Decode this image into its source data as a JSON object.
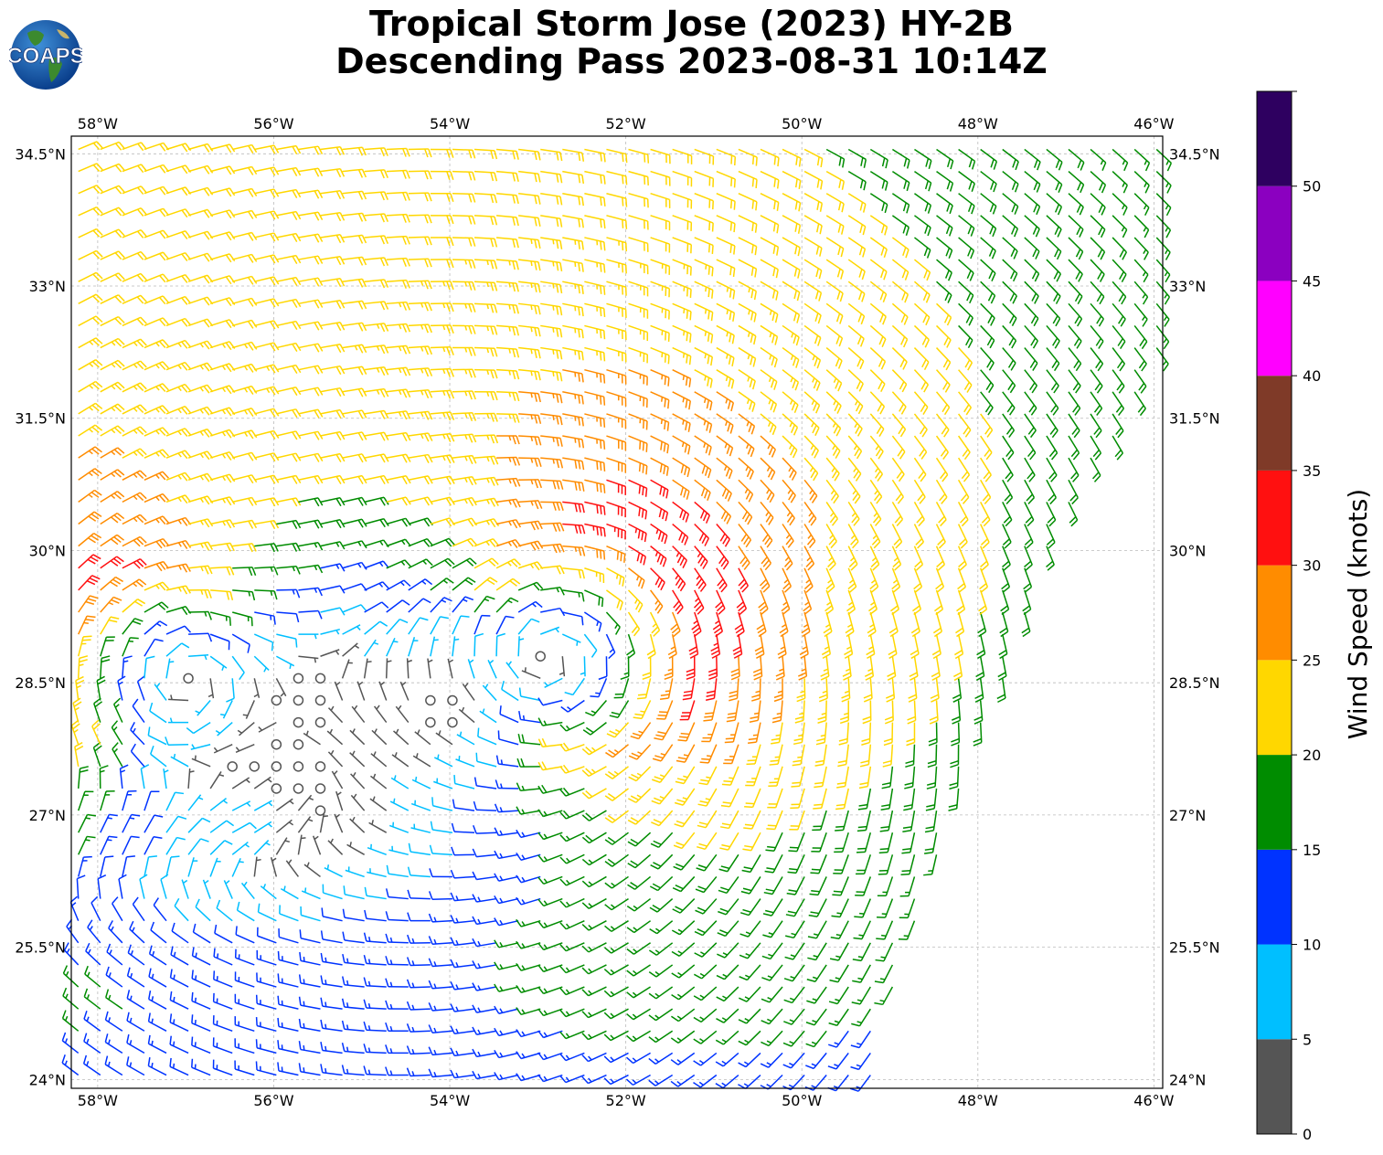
{
  "title": {
    "line1": "Tropical Storm Jose (2023) HY-2B",
    "line2": "Descending Pass 2023-08-31 10:14Z"
  },
  "logo": {
    "text": "COAPS",
    "icon": "globe-logo-icon"
  },
  "map": {
    "lon_min": -58.3,
    "lon_max": -45.9,
    "lat_min": 23.9,
    "lat_max": 34.7,
    "lon_ticks": [
      -58,
      -56,
      -54,
      -52,
      -50,
      -48,
      -46
    ],
    "lon_tick_labels": [
      "58°W",
      "56°W",
      "54°W",
      "52°W",
      "50°W",
      "48°W",
      "46°W"
    ],
    "lat_ticks": [
      24,
      25.5,
      27,
      28.5,
      30,
      31.5,
      33,
      34.5
    ],
    "lat_tick_labels": [
      "24°N",
      "25.5°N",
      "27°N",
      "28.5°N",
      "30°N",
      "31.5°N",
      "33°N",
      "34.5°N"
    ],
    "grid": true,
    "swath_east_edge": [
      [
        -45.9,
        34.7
      ],
      [
        -45.9,
        32.2
      ],
      [
        -47.0,
        30.4
      ],
      [
        -48.0,
        27.8
      ],
      [
        -49.0,
        24.8
      ],
      [
        -49.2,
        23.9
      ]
    ],
    "circulation_centers": [
      {
        "lon": -53.98,
        "lat": 28.2,
        "marker": "calm"
      },
      {
        "lon": -57.6,
        "lat": 28.7,
        "marker": "cyclonic"
      },
      {
        "lon": -52.4,
        "lat": 29.0,
        "marker": "cyclonic"
      }
    ]
  },
  "colorbar": {
    "label": "Wind Speed (knots)",
    "ticks": [
      "0",
      "5",
      "10",
      "15",
      "20",
      "25",
      "30",
      "35",
      "40",
      "45",
      "50"
    ],
    "bins": [
      {
        "min": 0,
        "max": 5,
        "color": "#555555"
      },
      {
        "min": 5,
        "max": 10,
        "color": "#00bfff"
      },
      {
        "min": 10,
        "max": 15,
        "color": "#0033ff"
      },
      {
        "min": 15,
        "max": 20,
        "color": "#008c00"
      },
      {
        "min": 20,
        "max": 25,
        "color": "#ffd700"
      },
      {
        "min": 25,
        "max": 30,
        "color": "#ff8c00"
      },
      {
        "min": 30,
        "max": 35,
        "color": "#ff1010"
      },
      {
        "min": 35,
        "max": 40,
        "color": "#7f3a28"
      },
      {
        "min": 40,
        "max": 45,
        "color": "#ff00ff"
      },
      {
        "min": 45,
        "max": 50,
        "color": "#8b00c0"
      },
      {
        "min": 50,
        "max": 55,
        "color": "#2e0060"
      }
    ]
  }
}
